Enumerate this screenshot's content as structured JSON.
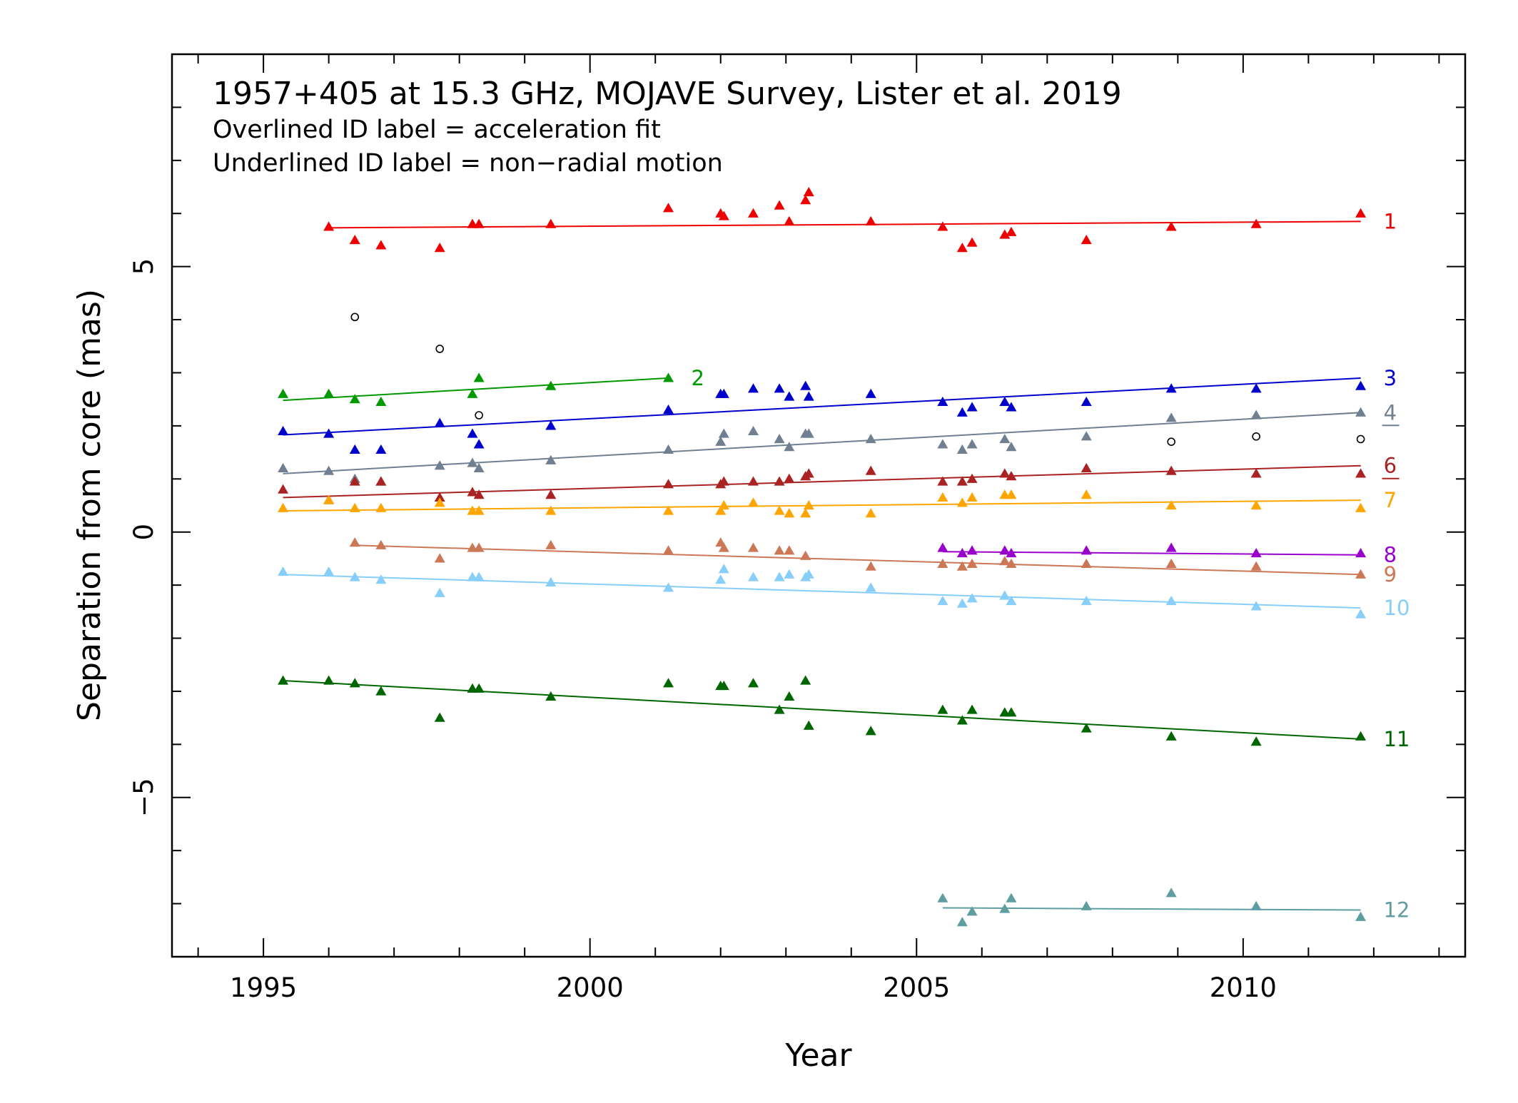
{
  "chart_data": {
    "type": "scatter",
    "title": "1957+405 at 15.3 GHz, MOJAVE Survey, Lister et al. 2019",
    "notes": [
      "Overlined ID label = acceleration fit",
      "Underlined ID label = non−radial motion"
    ],
    "xlabel": "Year",
    "ylabel": "Separation from core (mas)",
    "xlim": [
      1993.6,
      2013.4
    ],
    "ylim": [
      -8.0,
      9.0
    ],
    "xticks": [
      1995,
      2000,
      2005,
      2010
    ],
    "xtick_labels": [
      "1995",
      "2000",
      "2005",
      "2010"
    ],
    "yticks": [
      -5,
      0,
      5
    ],
    "ytick_labels": [
      "−5",
      "0",
      "5"
    ],
    "grid": false,
    "unassigned_marker": "open-circle",
    "unassigned_points": [
      [
        1996.4,
        4.05
      ],
      [
        1997.7,
        3.45
      ],
      [
        1998.3,
        2.2
      ],
      [
        2008.9,
        1.7
      ],
      [
        2010.2,
        1.8
      ],
      [
        2011.8,
        1.75
      ]
    ],
    "series": [
      {
        "id": "1",
        "color": "#ee0000",
        "label_style": "plain",
        "fit": [
          [
            1996.0,
            5.73
          ],
          [
            2011.8,
            5.85
          ]
        ],
        "points": [
          [
            1996.0,
            5.75
          ],
          [
            1996.4,
            5.5
          ],
          [
            1996.8,
            5.4
          ],
          [
            1997.7,
            5.35
          ],
          [
            1998.2,
            5.8
          ],
          [
            1998.3,
            5.8
          ],
          [
            1999.4,
            5.8
          ],
          [
            2001.2,
            6.1
          ],
          [
            2002.0,
            6.0
          ],
          [
            2002.05,
            5.95
          ],
          [
            2002.5,
            6.0
          ],
          [
            2002.9,
            6.15
          ],
          [
            2003.05,
            5.85
          ],
          [
            2003.3,
            6.25
          ],
          [
            2003.35,
            6.4
          ],
          [
            2004.3,
            5.85
          ],
          [
            2005.4,
            5.75
          ],
          [
            2005.7,
            5.35
          ],
          [
            2005.85,
            5.45
          ],
          [
            2006.35,
            5.6
          ],
          [
            2006.45,
            5.65
          ],
          [
            2007.6,
            5.5
          ],
          [
            2008.9,
            5.75
          ],
          [
            2010.2,
            5.8
          ],
          [
            2011.8,
            6.0
          ]
        ]
      },
      {
        "id": "2",
        "color": "#009900",
        "label_style": "plain",
        "fit": [
          [
            1995.3,
            2.48
          ],
          [
            2001.2,
            2.9
          ]
        ],
        "points": [
          [
            1995.3,
            2.6
          ],
          [
            1996.0,
            2.6
          ],
          [
            1996.4,
            2.5
          ],
          [
            1996.8,
            2.45
          ],
          [
            1998.2,
            2.6
          ],
          [
            1998.3,
            2.9
          ],
          [
            1999.4,
            2.75
          ],
          [
            2001.2,
            2.9
          ]
        ]
      },
      {
        "id": "3",
        "color": "#0000cc",
        "label_style": "plain",
        "fit": [
          [
            1995.3,
            1.83
          ],
          [
            2011.8,
            2.9
          ]
        ],
        "points": [
          [
            1995.3,
            1.9
          ],
          [
            1996.0,
            1.85
          ],
          [
            1996.4,
            1.55
          ],
          [
            1996.8,
            1.55
          ],
          [
            1997.7,
            2.05
          ],
          [
            1998.2,
            1.85
          ],
          [
            1998.3,
            1.65
          ],
          [
            1999.4,
            2.0
          ],
          [
            2001.2,
            2.3
          ],
          [
            2002.0,
            2.6
          ],
          [
            2002.05,
            2.6
          ],
          [
            2002.5,
            2.7
          ],
          [
            2002.9,
            2.7
          ],
          [
            2003.05,
            2.55
          ],
          [
            2003.3,
            2.75
          ],
          [
            2003.35,
            2.55
          ],
          [
            2004.3,
            2.6
          ],
          [
            2005.4,
            2.45
          ],
          [
            2005.7,
            2.25
          ],
          [
            2005.85,
            2.35
          ],
          [
            2006.35,
            2.45
          ],
          [
            2006.45,
            2.35
          ],
          [
            2007.6,
            2.45
          ],
          [
            2008.9,
            2.7
          ],
          [
            2010.2,
            2.7
          ],
          [
            2011.8,
            2.75
          ]
        ]
      },
      {
        "id": "4",
        "color": "#708090",
        "label_style": "underlined",
        "fit": [
          [
            1995.3,
            1.1
          ],
          [
            2011.8,
            2.25
          ]
        ],
        "points": [
          [
            1995.3,
            1.2
          ],
          [
            1996.0,
            1.15
          ],
          [
            1996.4,
            1.0
          ],
          [
            1996.8,
            0.95
          ],
          [
            1997.7,
            1.25
          ],
          [
            1998.2,
            1.3
          ],
          [
            1998.3,
            1.2
          ],
          [
            1999.4,
            1.35
          ],
          [
            2001.2,
            1.55
          ],
          [
            2002.0,
            1.7
          ],
          [
            2002.05,
            1.85
          ],
          [
            2002.5,
            1.9
          ],
          [
            2002.9,
            1.75
          ],
          [
            2003.05,
            1.6
          ],
          [
            2003.3,
            1.85
          ],
          [
            2003.35,
            1.85
          ],
          [
            2004.3,
            1.75
          ],
          [
            2005.4,
            1.65
          ],
          [
            2005.7,
            1.55
          ],
          [
            2005.85,
            1.65
          ],
          [
            2006.35,
            1.75
          ],
          [
            2006.45,
            1.6
          ],
          [
            2007.6,
            1.8
          ],
          [
            2008.9,
            2.15
          ],
          [
            2010.2,
            2.2
          ],
          [
            2011.8,
            2.25
          ]
        ]
      },
      {
        "id": "6",
        "color": "#aa2222",
        "label_style": "underlined",
        "fit": [
          [
            1995.3,
            0.65
          ],
          [
            2011.8,
            1.25
          ]
        ],
        "points": [
          [
            1995.3,
            0.8
          ],
          [
            1996.0,
            0.6
          ],
          [
            1996.4,
            0.95
          ],
          [
            1996.8,
            0.95
          ],
          [
            1997.7,
            0.65
          ],
          [
            1998.2,
            0.75
          ],
          [
            1998.3,
            0.7
          ],
          [
            1999.4,
            0.7
          ],
          [
            2001.2,
            0.9
          ],
          [
            2002.0,
            0.9
          ],
          [
            2002.05,
            0.95
          ],
          [
            2002.5,
            0.95
          ],
          [
            2002.9,
            0.95
          ],
          [
            2003.05,
            1.0
          ],
          [
            2003.3,
            1.05
          ],
          [
            2003.35,
            1.1
          ],
          [
            2004.3,
            1.15
          ],
          [
            2005.4,
            0.95
          ],
          [
            2005.7,
            0.95
          ],
          [
            2005.85,
            1.0
          ],
          [
            2006.35,
            1.1
          ],
          [
            2006.45,
            1.05
          ],
          [
            2007.6,
            1.2
          ],
          [
            2008.9,
            1.15
          ],
          [
            2010.2,
            1.1
          ],
          [
            2011.8,
            1.1
          ]
        ]
      },
      {
        "id": "7",
        "color": "#ffa500",
        "label_style": "plain",
        "fit": [
          [
            1995.3,
            0.4
          ],
          [
            2011.8,
            0.6
          ]
        ],
        "points": [
          [
            1995.3,
            0.45
          ],
          [
            1996.0,
            0.6
          ],
          [
            1996.4,
            0.45
          ],
          [
            1996.8,
            0.45
          ],
          [
            1997.7,
            0.55
          ],
          [
            1998.2,
            0.4
          ],
          [
            1998.3,
            0.4
          ],
          [
            1999.4,
            0.4
          ],
          [
            2001.2,
            0.4
          ],
          [
            2002.0,
            0.4
          ],
          [
            2002.05,
            0.5
          ],
          [
            2002.5,
            0.55
          ],
          [
            2002.9,
            0.4
          ],
          [
            2003.05,
            0.35
          ],
          [
            2003.3,
            0.35
          ],
          [
            2003.35,
            0.5
          ],
          [
            2004.3,
            0.35
          ],
          [
            2005.4,
            0.65
          ],
          [
            2005.7,
            0.55
          ],
          [
            2005.85,
            0.65
          ],
          [
            2006.35,
            0.7
          ],
          [
            2006.45,
            0.7
          ],
          [
            2007.6,
            0.7
          ],
          [
            2008.9,
            0.5
          ],
          [
            2010.2,
            0.5
          ],
          [
            2011.8,
            0.45
          ]
        ]
      },
      {
        "id": "8",
        "color": "#9900cc",
        "label_style": "plain",
        "fit": [
          [
            2005.4,
            -0.37
          ],
          [
            2011.8,
            -0.43
          ]
        ],
        "points": [
          [
            2005.4,
            -0.3
          ],
          [
            2005.7,
            -0.4
          ],
          [
            2005.85,
            -0.35
          ],
          [
            2006.35,
            -0.35
          ],
          [
            2006.45,
            -0.4
          ],
          [
            2007.6,
            -0.35
          ],
          [
            2008.9,
            -0.3
          ],
          [
            2010.2,
            -0.4
          ],
          [
            2011.8,
            -0.4
          ]
        ]
      },
      {
        "id": "9",
        "color": "#cc7755",
        "label_style": "plain",
        "fit": [
          [
            1996.4,
            -0.25
          ],
          [
            2011.8,
            -0.8
          ]
        ],
        "points": [
          [
            1996.4,
            -0.2
          ],
          [
            1996.8,
            -0.25
          ],
          [
            1997.7,
            -0.5
          ],
          [
            1998.2,
            -0.3
          ],
          [
            1998.3,
            -0.3
          ],
          [
            1999.4,
            -0.25
          ],
          [
            2001.2,
            -0.35
          ],
          [
            2002.0,
            -0.2
          ],
          [
            2002.05,
            -0.3
          ],
          [
            2002.5,
            -0.3
          ],
          [
            2002.9,
            -0.35
          ],
          [
            2003.05,
            -0.35
          ],
          [
            2003.3,
            -0.45
          ],
          [
            2004.3,
            -0.65
          ],
          [
            2005.4,
            -0.6
          ],
          [
            2005.7,
            -0.65
          ],
          [
            2005.85,
            -0.6
          ],
          [
            2006.35,
            -0.55
          ],
          [
            2006.45,
            -0.6
          ],
          [
            2007.6,
            -0.6
          ],
          [
            2008.9,
            -0.6
          ],
          [
            2010.2,
            -0.65
          ],
          [
            2011.8,
            -0.8
          ]
        ]
      },
      {
        "id": "10",
        "color": "#87cefa",
        "label_style": "plain",
        "fit": [
          [
            1995.3,
            -0.8
          ],
          [
            2011.8,
            -1.43
          ]
        ],
        "points": [
          [
            1995.3,
            -0.75
          ],
          [
            1996.0,
            -0.75
          ],
          [
            1996.4,
            -0.85
          ],
          [
            1996.8,
            -0.9
          ],
          [
            1997.7,
            -1.15
          ],
          [
            1998.2,
            -0.85
          ],
          [
            1998.3,
            -0.85
          ],
          [
            1999.4,
            -0.95
          ],
          [
            2001.2,
            -1.05
          ],
          [
            2002.0,
            -0.9
          ],
          [
            2002.05,
            -0.7
          ],
          [
            2002.5,
            -0.85
          ],
          [
            2002.9,
            -0.85
          ],
          [
            2003.05,
            -0.8
          ],
          [
            2003.3,
            -0.85
          ],
          [
            2003.35,
            -0.8
          ],
          [
            2004.3,
            -1.05
          ],
          [
            2005.4,
            -1.3
          ],
          [
            2005.7,
            -1.35
          ],
          [
            2005.85,
            -1.25
          ],
          [
            2006.35,
            -1.2
          ],
          [
            2006.45,
            -1.3
          ],
          [
            2007.6,
            -1.3
          ],
          [
            2008.9,
            -1.3
          ],
          [
            2010.2,
            -1.4
          ],
          [
            2011.8,
            -1.55
          ]
        ]
      },
      {
        "id": "11",
        "color": "#006600",
        "label_style": "plain",
        "fit": [
          [
            1995.3,
            -2.8
          ],
          [
            2011.8,
            -3.9
          ]
        ],
        "points": [
          [
            1995.3,
            -2.8
          ],
          [
            1996.0,
            -2.8
          ],
          [
            1996.4,
            -2.85
          ],
          [
            1996.8,
            -3.0
          ],
          [
            1997.7,
            -3.5
          ],
          [
            1998.2,
            -2.95
          ],
          [
            1998.3,
            -2.95
          ],
          [
            1999.4,
            -3.1
          ],
          [
            2001.2,
            -2.85
          ],
          [
            2002.0,
            -2.9
          ],
          [
            2002.05,
            -2.9
          ],
          [
            2002.5,
            -2.85
          ],
          [
            2002.9,
            -3.35
          ],
          [
            2003.05,
            -3.1
          ],
          [
            2003.3,
            -2.8
          ],
          [
            2003.35,
            -3.65
          ],
          [
            2004.3,
            -3.75
          ],
          [
            2005.4,
            -3.35
          ],
          [
            2005.7,
            -3.55
          ],
          [
            2005.85,
            -3.35
          ],
          [
            2006.35,
            -3.4
          ],
          [
            2006.45,
            -3.4
          ],
          [
            2007.6,
            -3.7
          ],
          [
            2008.9,
            -3.85
          ],
          [
            2010.2,
            -3.95
          ],
          [
            2011.8,
            -3.85
          ]
        ]
      },
      {
        "id": "12",
        "color": "#5f9ea0",
        "label_style": "plain",
        "fit": [
          [
            2005.4,
            -7.08
          ],
          [
            2011.8,
            -7.12
          ]
        ],
        "points": [
          [
            2005.4,
            -6.9
          ],
          [
            2005.7,
            -7.35
          ],
          [
            2005.85,
            -7.15
          ],
          [
            2006.35,
            -7.1
          ],
          [
            2006.45,
            -6.9
          ],
          [
            2007.6,
            -7.05
          ],
          [
            2008.9,
            -6.8
          ],
          [
            2010.2,
            -7.05
          ],
          [
            2011.8,
            -7.25
          ]
        ]
      }
    ]
  }
}
